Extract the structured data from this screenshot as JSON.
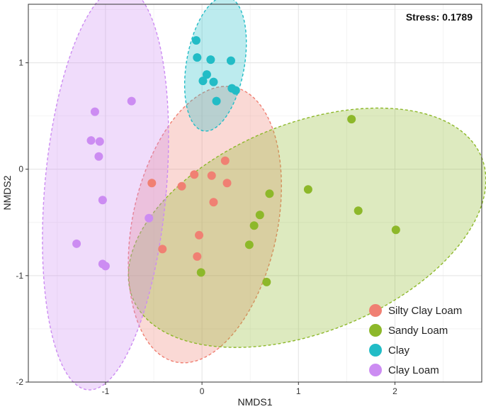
{
  "chart_data": {
    "type": "scatter",
    "title": "",
    "xlabel": "NMDS1",
    "ylabel": "NMDS2",
    "xlim": [
      -1.8,
      2.9
    ],
    "ylim": [
      -2.0,
      1.55
    ],
    "x_ticks": [
      -1,
      0,
      1,
      2
    ],
    "y_ticks": [
      -2,
      -1,
      0,
      1
    ],
    "x_tick_labels": [
      "-1",
      "0",
      "1",
      "2"
    ],
    "y_tick_labels": [
      "-2",
      "-1",
      "0",
      "1"
    ],
    "grid": true,
    "annotation": "Stress: 0.1789",
    "legend_position": "bottom-right",
    "series": [
      {
        "name": "Silty Clay Loam",
        "color": "#F08073",
        "points": [
          [
            -0.52,
            -0.13
          ],
          [
            -0.41,
            -0.75
          ],
          [
            -0.21,
            -0.16
          ],
          [
            -0.08,
            -0.05
          ],
          [
            -0.03,
            -0.62
          ],
          [
            -0.05,
            -0.82
          ],
          [
            0.1,
            -0.06
          ],
          [
            0.12,
            -0.31
          ],
          [
            0.24,
            0.08
          ],
          [
            0.26,
            -0.13
          ]
        ],
        "ellipse": {
          "cx": 0.03,
          "cy": -0.52,
          "rx": 0.75,
          "ry": 1.32,
          "angle_deg": -12
        }
      },
      {
        "name": "Sandy Loam",
        "color": "#8DB82A",
        "points": [
          [
            -0.01,
            -0.97
          ],
          [
            0.49,
            -0.71
          ],
          [
            0.54,
            -0.53
          ],
          [
            0.6,
            -0.43
          ],
          [
            0.67,
            -1.06
          ],
          [
            0.7,
            -0.23
          ],
          [
            1.1,
            -0.19
          ],
          [
            1.55,
            0.47
          ],
          [
            1.62,
            -0.39
          ],
          [
            2.01,
            -0.57
          ]
        ],
        "ellipse": {
          "cx": 1.09,
          "cy": -0.55,
          "rx": 1.95,
          "ry": 0.98,
          "angle_deg": 22
        }
      },
      {
        "name": "Clay",
        "color": "#22BCC6",
        "points": [
          [
            -0.06,
            1.21
          ],
          [
            -0.05,
            1.05
          ],
          [
            0.01,
            0.83
          ],
          [
            0.05,
            0.89
          ],
          [
            0.09,
            1.03
          ],
          [
            0.12,
            0.82
          ],
          [
            0.15,
            0.64
          ],
          [
            0.3,
            1.02
          ],
          [
            0.31,
            0.76
          ],
          [
            0.35,
            0.74
          ]
        ],
        "ellipse": {
          "cx": 0.14,
          "cy": 0.99,
          "rx": 0.3,
          "ry": 0.64,
          "angle_deg": -10
        }
      },
      {
        "name": "Clay Loam",
        "color": "#CC8CF2",
        "points": [
          [
            -1.3,
            -0.7
          ],
          [
            -1.15,
            0.27
          ],
          [
            -1.11,
            0.54
          ],
          [
            -1.07,
            0.12
          ],
          [
            -1.06,
            0.26
          ],
          [
            -1.03,
            -0.29
          ],
          [
            -1.03,
            -0.89
          ],
          [
            -1.0,
            -0.91
          ],
          [
            -0.55,
            -0.46
          ],
          [
            -0.73,
            0.64
          ]
        ],
        "ellipse": {
          "cx": -1.0,
          "cy": -0.18,
          "rx": 0.63,
          "ry": 1.9,
          "angle_deg": -5
        }
      }
    ]
  }
}
